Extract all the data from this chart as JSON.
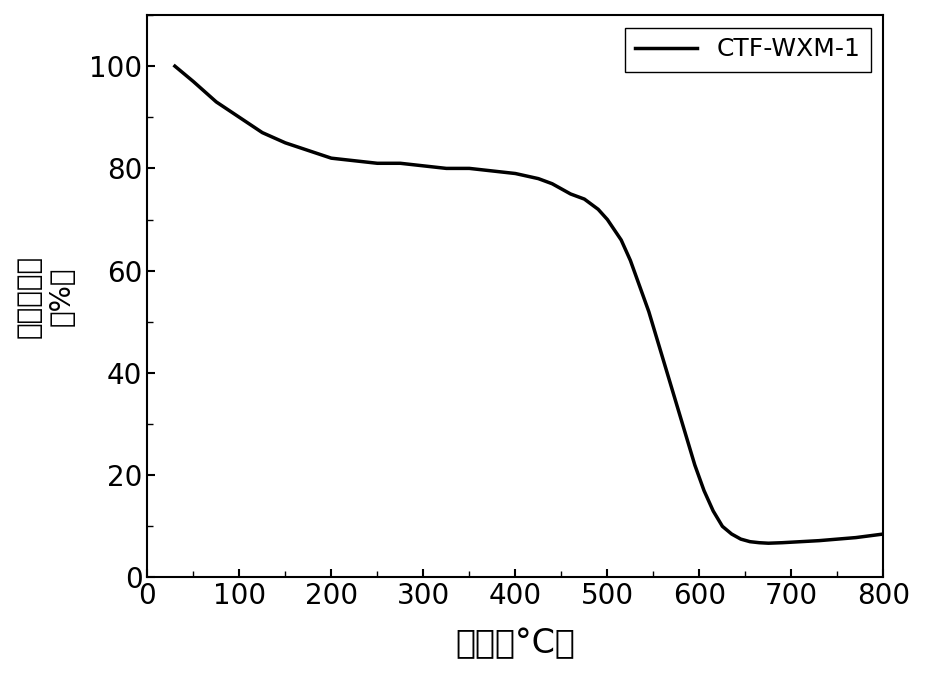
{
  "x": [
    30,
    50,
    75,
    100,
    125,
    150,
    175,
    200,
    225,
    250,
    275,
    300,
    325,
    350,
    375,
    400,
    425,
    440,
    460,
    475,
    490,
    500,
    515,
    525,
    535,
    545,
    555,
    565,
    575,
    585,
    595,
    605,
    615,
    625,
    635,
    645,
    655,
    665,
    675,
    690,
    710,
    730,
    750,
    770,
    800
  ],
  "y": [
    100,
    97,
    93,
    90,
    87,
    85,
    83.5,
    82,
    81.5,
    81,
    81,
    80.5,
    80,
    80,
    79.5,
    79,
    78,
    77,
    75,
    74,
    72,
    70,
    66,
    62,
    57,
    52,
    46,
    40,
    34,
    28,
    22,
    17,
    13,
    10,
    8.5,
    7.5,
    7,
    6.8,
    6.7,
    6.8,
    7,
    7.2,
    7.5,
    7.8,
    8.5
  ],
  "xlabel": "温度（°C）",
  "ylabel_chars": [
    "质量百分数（%）"
  ],
  "ylabel_line1": "质量百分数",
  "ylabel_line2": "（%）",
  "legend_label": "CTF-WXM-1",
  "xlim": [
    0,
    800
  ],
  "ylim": [
    0,
    110
  ],
  "xticks": [
    0,
    100,
    200,
    300,
    400,
    500,
    600,
    700,
    800
  ],
  "yticks": [
    0,
    20,
    40,
    60,
    80,
    100
  ],
  "line_color": "#000000",
  "line_width": 2.5,
  "background_color": "#ffffff",
  "xlabel_fontsize": 24,
  "ylabel_fontsize": 20,
  "tick_fontsize": 20,
  "legend_fontsize": 18
}
